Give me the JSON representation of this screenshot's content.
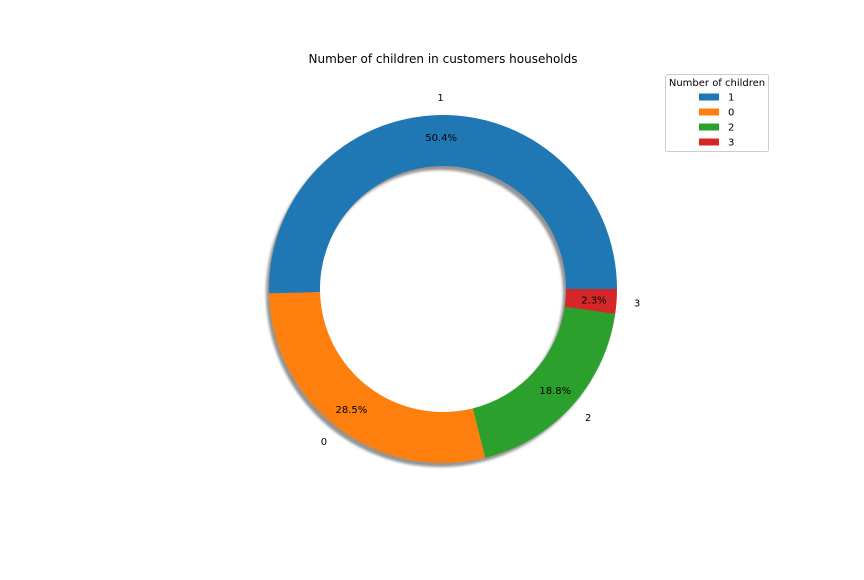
{
  "chart_data": {
    "type": "pie",
    "subtype": "donut",
    "title": "Number of children in customers households",
    "slices": [
      {
        "label": "1",
        "value": 50.4,
        "pct_label": "50.4%",
        "color": "#1f77b4"
      },
      {
        "label": "0",
        "value": 28.5,
        "pct_label": "28.5%",
        "color": "#ff7f0e"
      },
      {
        "label": "2",
        "value": 18.8,
        "pct_label": "18.8%",
        "color": "#2ca02c"
      },
      {
        "label": "3",
        "value": 2.3,
        "pct_label": "2.3%",
        "color": "#d62728"
      }
    ],
    "shadow": true,
    "legend": {
      "title": "Number of children",
      "placement": "upper-right",
      "entries": [
        "1",
        "0",
        "2",
        "3"
      ]
    }
  }
}
